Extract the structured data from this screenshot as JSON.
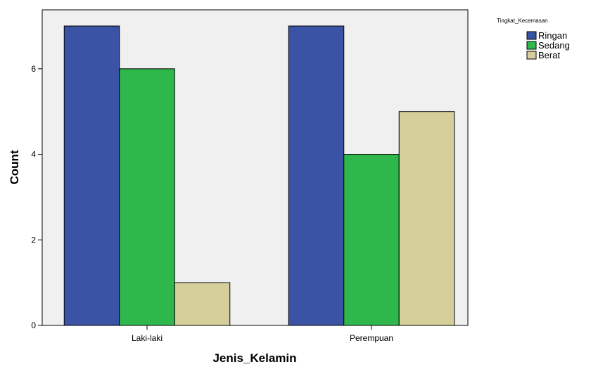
{
  "chart_data": {
    "type": "bar",
    "categories": [
      "Laki-laki",
      "Perempuan"
    ],
    "series": [
      {
        "name": "Ringan",
        "values": [
          7,
          7
        ],
        "color": "#3a53a4"
      },
      {
        "name": "Sedang",
        "values": [
          6,
          4
        ],
        "color": "#2eb84b"
      },
      {
        "name": "Berat",
        "values": [
          1,
          5
        ],
        "color": "#d6cf9c"
      }
    ],
    "xlabel": "Jenis_Kelamin",
    "ylabel": "Count",
    "legend_title": "Tingkat_Kecemasan",
    "ylim": [
      0,
      7
    ],
    "yticks": [
      0,
      2,
      4,
      6
    ],
    "legend_position": "top-right",
    "plot_background": "#f0f0f0",
    "grid": false
  }
}
